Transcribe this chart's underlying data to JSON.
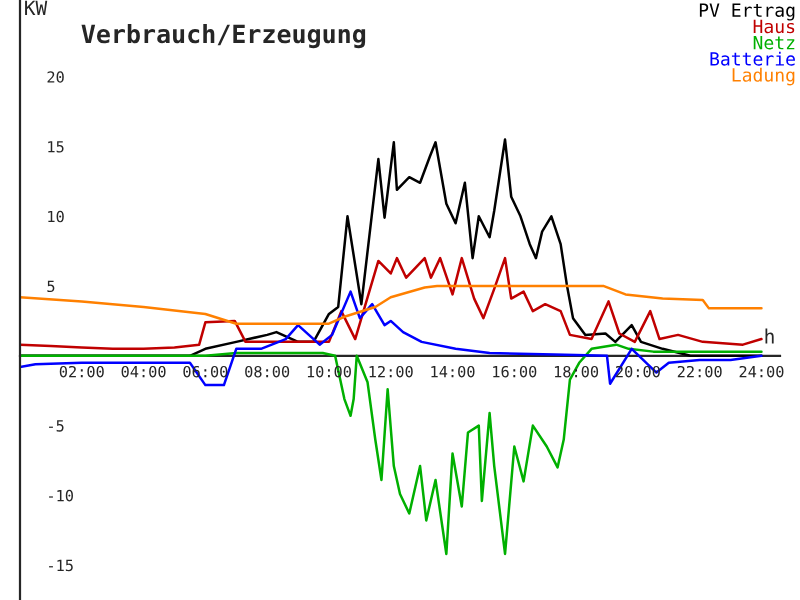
{
  "chart_data": {
    "type": "line",
    "title": "Verbrauch/Erzeugung",
    "ylabel": "KW",
    "annotations": [
      "h"
    ],
    "xlim": [
      0,
      24.6
    ],
    "ylim": [
      -17.5,
      25.5
    ],
    "xticks": [
      {
        "value": 2,
        "label": "02:00"
      },
      {
        "value": 4,
        "label": "04:00"
      },
      {
        "value": 6,
        "label": "06:00"
      },
      {
        "value": 8,
        "label": "08:00"
      },
      {
        "value": 10,
        "label": "10:00"
      },
      {
        "value": 12,
        "label": "12:00"
      },
      {
        "value": 14,
        "label": "14:00"
      },
      {
        "value": 16,
        "label": "16:00"
      },
      {
        "value": 18,
        "label": "18:00"
      },
      {
        "value": 20,
        "label": "20:00"
      },
      {
        "value": 22,
        "label": "22:00"
      },
      {
        "value": 24,
        "label": "24:00"
      }
    ],
    "yticks": [
      -15,
      -10,
      -5,
      5,
      10,
      15,
      20
    ],
    "grid": false,
    "legend": "top right",
    "marker": "none",
    "line_style": "solid",
    "series": [
      {
        "name": "PV Ertrag",
        "color": "#000000",
        "x": [
          0,
          5.5,
          6,
          7,
          8,
          8.3,
          9,
          9.5,
          10,
          10.3,
          10.6,
          11.05,
          11.6,
          11.8,
          12.1,
          12.2,
          12.6,
          12.95,
          13.27,
          13.45,
          13.8,
          14.1,
          14.4,
          14.65,
          14.85,
          15.2,
          15.35,
          15.7,
          15.9,
          16.2,
          16.5,
          16.7,
          16.9,
          17.2,
          17.5,
          17.7,
          17.9,
          18.3,
          18.95,
          19.27,
          19.8,
          20.1,
          20.8,
          21.7,
          24
        ],
        "values": [
          0,
          0,
          0.5,
          1,
          1.5,
          1.7,
          1,
          1,
          3,
          3.5,
          10,
          3.7,
          14.1,
          9.9,
          15.3,
          11.9,
          12.8,
          12.4,
          14.3,
          15.3,
          10.9,
          9.5,
          12.4,
          7,
          10,
          8.5,
          10.4,
          15.5,
          11.4,
          10,
          8,
          7,
          8.9,
          10,
          8,
          5.1,
          2.7,
          1.5,
          1.6,
          1,
          2.2,
          1,
          0.5,
          0,
          0
        ]
      },
      {
        "name": "Haus",
        "color": "#c00000",
        "x": [
          0,
          1,
          2,
          3,
          4,
          5,
          5.8,
          6.0,
          6.95,
          7.3,
          8,
          9,
          10,
          10.4,
          10.85,
          11.6,
          12,
          12.2,
          12.5,
          13.1,
          13.3,
          13.6,
          14.0,
          14.3,
          14.7,
          15.0,
          15.35,
          15.7,
          15.9,
          16.3,
          16.6,
          17.0,
          17.5,
          17.8,
          18.5,
          19.05,
          19.4,
          19.9,
          20.4,
          20.7,
          21.3,
          22.1,
          23.4,
          24
        ],
        "values": [
          0.8,
          0.7,
          0.6,
          0.5,
          0.5,
          0.6,
          0.8,
          2.4,
          2.5,
          1,
          1,
          1,
          1,
          3.2,
          1.2,
          6.8,
          5.9,
          7,
          5.6,
          7,
          5.6,
          7,
          4.4,
          7,
          4.1,
          2.7,
          4.8,
          7,
          4.1,
          4.6,
          3.2,
          3.7,
          3.2,
          1.5,
          1.2,
          3.9,
          1.6,
          1,
          3.2,
          1.2,
          1.5,
          1,
          0.8,
          1.2
        ]
      },
      {
        "name": "Netz",
        "color": "#00b000",
        "x": [
          0,
          2,
          4,
          6,
          7,
          8,
          9,
          9.8,
          10.2,
          10.5,
          10.7,
          10.8,
          10.9,
          11.25,
          11.5,
          11.7,
          11.9,
          12.1,
          12.3,
          12.6,
          12.95,
          13.15,
          13.45,
          13.8,
          14.0,
          14.3,
          14.5,
          14.85,
          14.95,
          15.2,
          15.35,
          15.7,
          16.0,
          16.3,
          16.6,
          17.05,
          17.4,
          17.6,
          17.8,
          18.1,
          18.5,
          19.3,
          19.7,
          20.5,
          22,
          24
        ],
        "values": [
          0,
          0,
          0,
          0,
          0.2,
          0.2,
          0.2,
          0.2,
          0,
          -3.1,
          -4.3,
          -3.1,
          0,
          -1.9,
          -6,
          -8.9,
          -2.4,
          -7.9,
          -9.9,
          -11.3,
          -7.9,
          -11.8,
          -8.9,
          -14.2,
          -7,
          -10.8,
          -5.5,
          -5,
          -10.4,
          -4.1,
          -7.9,
          -14.2,
          -6.5,
          -9,
          -5,
          -6.5,
          -8,
          -6,
          -1.7,
          -0.5,
          0.5,
          0.8,
          0.5,
          0.3,
          0.3,
          0.3
        ]
      },
      {
        "name": "Batterie",
        "color": "#0000ff",
        "x": [
          0,
          0.5,
          2,
          4,
          5.5,
          6.0,
          6.6,
          7,
          7.8,
          8.6,
          9,
          9.7,
          10.1,
          10.7,
          11,
          11.4,
          11.8,
          12,
          12.4,
          13.0,
          14.1,
          15.2,
          17.3,
          19,
          19.1,
          19.8,
          20.6,
          21,
          22,
          23,
          24
        ],
        "values": [
          -0.8,
          -0.6,
          -0.5,
          -0.5,
          -0.5,
          -2.1,
          -2.1,
          0.5,
          0.5,
          1.2,
          2.2,
          0.8,
          1.5,
          4.6,
          2.7,
          3.7,
          2.2,
          2.5,
          1.7,
          1,
          0.5,
          0.2,
          0.1,
          0,
          -2,
          0.5,
          -1.2,
          -0.5,
          -0.3,
          -0.3,
          0
        ]
      },
      {
        "name": "Ladung",
        "color": "#ff8000",
        "x": [
          0,
          2,
          4,
          6,
          7,
          8,
          10,
          10.5,
          11.5,
          12,
          13.1,
          13.5,
          18.5,
          18.9,
          19.6,
          20.8,
          22.1,
          22.3,
          24
        ],
        "values": [
          4.2,
          3.9,
          3.5,
          3,
          2.3,
          2.3,
          2.3,
          2.8,
          3.5,
          4.2,
          4.9,
          5,
          5,
          5,
          4.4,
          4.1,
          4,
          3.4,
          3.4
        ]
      }
    ]
  }
}
